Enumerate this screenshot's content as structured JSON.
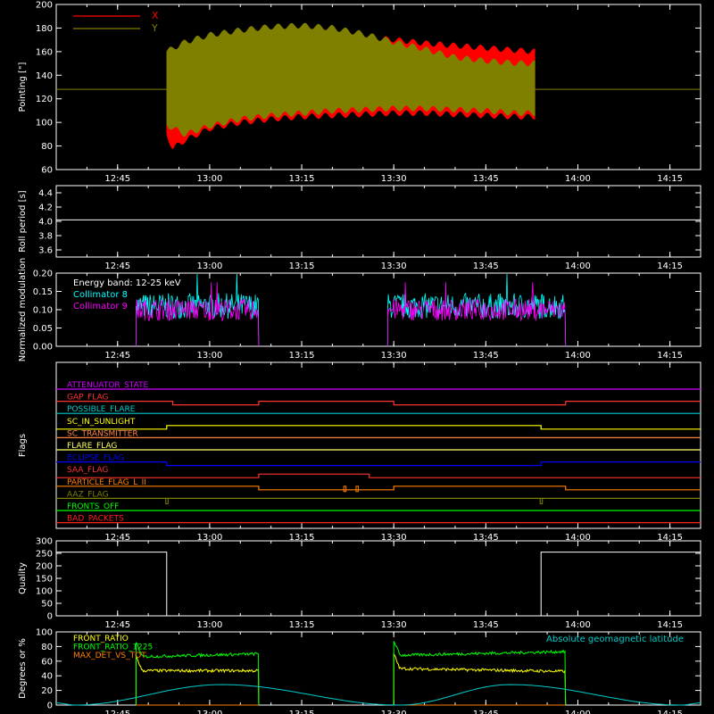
{
  "time_axis": {
    "start": "12:35",
    "end": "14:20",
    "ticks": [
      "12:45",
      "13:00",
      "13:15",
      "13:30",
      "13:45",
      "14:00",
      "14:15"
    ]
  },
  "chart_data": [
    {
      "id": "pointing",
      "type": "area",
      "ylabel": "Pointing [\"]",
      "ylim": [
        60,
        200
      ],
      "yticks": [
        60,
        80,
        100,
        120,
        140,
        160,
        180,
        200
      ],
      "legend": [
        {
          "name": "X",
          "color": "#ff0000"
        },
        {
          "name": "Y",
          "color": "#808000"
        }
      ],
      "baseline": {
        "value": 128,
        "color": "#808000"
      },
      "series": [
        {
          "name": "X",
          "color": "#ff0000",
          "x": [
            "12:53",
            "12:54",
            "12:56",
            "13:00",
            "13:05",
            "13:10",
            "13:15",
            "13:20",
            "13:25",
            "13:30",
            "13:35",
            "13:40",
            "13:45",
            "13:50",
            "13:53"
          ],
          "upper": [
            155,
            162,
            168,
            172,
            175,
            176,
            176,
            175,
            172,
            170,
            167,
            165,
            163,
            161,
            160
          ],
          "lower": [
            90,
            78,
            85,
            95,
            100,
            103,
            105,
            106,
            107,
            108,
            108,
            107,
            106,
            105,
            105
          ]
        },
        {
          "name": "Y",
          "color": "#808000",
          "x": [
            "12:53",
            "12:56",
            "13:00",
            "13:05",
            "13:10",
            "13:15",
            "13:20",
            "13:25",
            "13:30",
            "13:35",
            "13:40",
            "13:45",
            "13:50",
            "13:53"
          ],
          "upper": [
            160,
            168,
            174,
            178,
            181,
            182,
            180,
            175,
            168,
            162,
            155,
            152,
            150,
            150
          ],
          "lower": [
            98,
            90,
            97,
            103,
            106,
            108,
            110,
            111,
            112,
            112,
            111,
            110,
            108,
            108
          ]
        }
      ]
    },
    {
      "id": "roll",
      "type": "line",
      "ylabel": "Roll period [s]",
      "ylim": [
        3.5,
        4.5
      ],
      "yticks": [
        "3.6",
        "3.8",
        "4.0",
        "4.2",
        "4.4"
      ],
      "series": [
        {
          "color": "#ffffff",
          "x": [
            "12:35",
            "14:20"
          ],
          "values": [
            4.02,
            4.02
          ]
        }
      ]
    },
    {
      "id": "modulation",
      "type": "line",
      "ylabel": "Normalized modulation",
      "ylim": [
        0,
        0.2
      ],
      "yticks": [
        "0.00",
        "0.05",
        "0.10",
        "0.15",
        "0.20"
      ],
      "annotation": "Energy band: 12-25 keV",
      "legend": [
        {
          "name": "Collimator 8",
          "color": "#00ffff"
        },
        {
          "name": "Collimator 9",
          "color": "#ff00ff"
        }
      ],
      "segments": [
        {
          "start": "12:48",
          "end": "13:08"
        },
        {
          "start": "13:29",
          "end": "13:58"
        }
      ],
      "series": [
        {
          "name": "Collimator 8",
          "color": "#00ffff",
          "level": 0.11,
          "spread": 0.035
        },
        {
          "name": "Collimator 9",
          "color": "#ff00ff",
          "level": 0.1,
          "spread": 0.03
        }
      ]
    },
    {
      "id": "flags",
      "type": "line",
      "ylabel": "Flags",
      "series": [
        {
          "name": "ATTENUATOR_STATE",
          "color": "#cc00ff",
          "low": []
        },
        {
          "name": "GAP_FLAG",
          "color": "#ff3030",
          "low": [
            [
              "12:54",
              "13:08"
            ],
            [
              "13:30",
              "13:58"
            ]
          ]
        },
        {
          "name": "POSSIBLE_FLARE",
          "color": "#00cccc",
          "low": []
        },
        {
          "name": "SC_IN_SUNLIGHT",
          "color": "#ffff00",
          "low": [
            [
              "12:35",
              "12:53"
            ],
            [
              "13:54",
              "14:20"
            ]
          ]
        },
        {
          "name": "SC_TRANSMITTER",
          "color": "#ff8040",
          "low": []
        },
        {
          "name": "FLARE_FLAG",
          "color": "#ffff66",
          "low": []
        },
        {
          "name": "ECLIPSE_FLAG",
          "color": "#0000ff",
          "low": [
            [
              "12:53",
              "13:54"
            ]
          ]
        },
        {
          "name": "SAA_FLAG",
          "color": "#ff3030",
          "low": [
            [
              "12:35",
              "13:08"
            ],
            [
              "13:26",
              "14:20"
            ]
          ]
        },
        {
          "name": "PARTICLE_FLAG_L_II",
          "color": "#ff8000",
          "low": [
            [
              "13:08",
              "13:30"
            ],
            [
              "13:58",
              "14:20"
            ]
          ],
          "spikes": [
            "13:22",
            "13:24"
          ]
        },
        {
          "name": "AAZ_FLAG",
          "color": "#808000",
          "low": [],
          "spikes": [
            "12:53",
            "13:54"
          ]
        },
        {
          "name": "FRONTS_OFF",
          "color": "#00ff00",
          "low": []
        },
        {
          "name": "BAD_PACKETS",
          "color": "#ff2020",
          "low": []
        }
      ]
    },
    {
      "id": "quality",
      "type": "line",
      "ylabel": "Quality",
      "ylim": [
        0,
        300
      ],
      "yticks": [
        0,
        50,
        100,
        150,
        200,
        250,
        300
      ],
      "series": [
        {
          "color": "#ffffff",
          "x": [
            "12:35",
            "12:53",
            "12:53",
            "13:54",
            "13:54",
            "14:20"
          ],
          "values": [
            255,
            255,
            0,
            0,
            255,
            255
          ]
        }
      ]
    },
    {
      "id": "ratios",
      "type": "line",
      "ylabel": "Degrees or %",
      "ylim": [
        0,
        100
      ],
      "yticks": [
        0,
        20,
        40,
        60,
        80,
        100
      ],
      "annotation": "Absolute geomagnetic latitude",
      "legend": [
        {
          "name": "FRONT_RATIO",
          "color": "#ffff00"
        },
        {
          "name": "FRONT_RATIO_1225",
          "color": "#00ff00"
        },
        {
          "name": "MAX_DET_VS_TOT",
          "color": "#ff8000"
        }
      ],
      "segments": [
        {
          "start": "12:48",
          "end": "13:08"
        },
        {
          "start": "13:30",
          "end": "13:58"
        }
      ],
      "series": [
        {
          "name": "FRONT_RATIO",
          "color": "#ffff00",
          "levels": [
            [
              47,
              47
            ],
            [
              50,
              46
            ]
          ]
        },
        {
          "name": "FRONT_RATIO_1225",
          "color": "#00ff00",
          "levels": [
            [
              66,
              70
            ],
            [
              68,
              73
            ]
          ]
        },
        {
          "name": "MAX_DET_VS_TOT",
          "color": "#ff8000",
          "levels": [
            [
              0,
              0
            ],
            [
              0,
              0
            ]
          ]
        },
        {
          "name": "Absolute geomagnetic latitude",
          "color": "#00cccc",
          "x": [
            "12:35",
            "12:38",
            "13:02",
            "13:31",
            "13:49",
            "14:17",
            "14:20"
          ],
          "values": [
            3,
            0,
            28,
            0,
            28,
            0,
            3
          ]
        }
      ]
    }
  ]
}
